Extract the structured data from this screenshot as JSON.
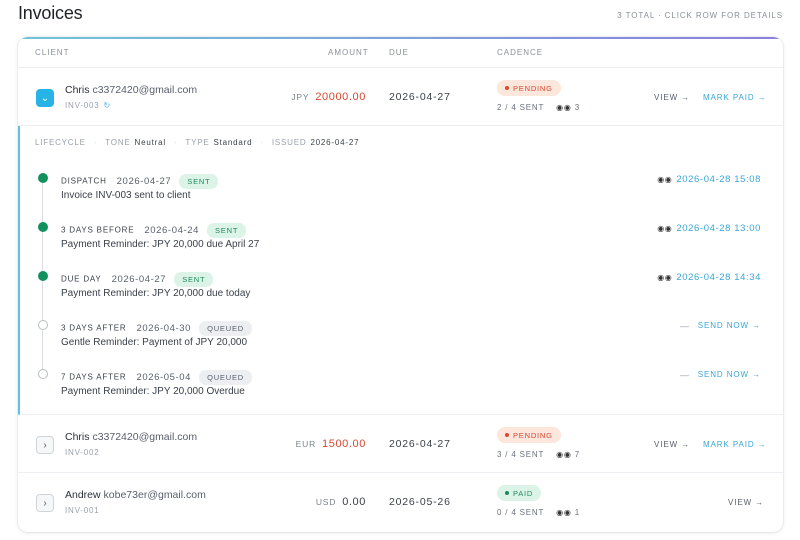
{
  "header": {
    "title": "Invoices",
    "summary": "3 TOTAL · CLICK ROW FOR DETAILS"
  },
  "columns": {
    "client": "CLIENT",
    "amount": "AMOUNT",
    "due": "DUE",
    "cadence": "CADENCE"
  },
  "invoices": [
    {
      "name": "Chris",
      "email": "c3372420@gmail.com",
      "id": "INV-003",
      "currency": "JPY",
      "amount": "20000.00",
      "due": "2026-04-27",
      "status": "PENDING",
      "sent": "2 / 4 SENT",
      "opens": "3",
      "view": "VIEW →",
      "mark_paid": "MARK PAID →",
      "expanded": true
    },
    {
      "name": "Chris",
      "email": "c3372420@gmail.com",
      "id": "INV-002",
      "currency": "EUR",
      "amount": "1500.00",
      "due": "2026-04-27",
      "status": "PENDING",
      "sent": "3 / 4 SENT",
      "opens": "7",
      "view": "VIEW →",
      "mark_paid": "MARK PAID →",
      "expanded": false
    },
    {
      "name": "Andrew",
      "email": "kobe73er@gmail.com",
      "id": "INV-001",
      "currency": "USD",
      "amount": "0.00",
      "due": "2026-05-26",
      "status": "PAID",
      "sent": "0 / 4 SENT",
      "opens": "1",
      "view": "VIEW →",
      "expanded": false
    }
  ],
  "lifecycle": {
    "label": "LIFECYCLE",
    "tone_label": "TONE",
    "tone": "Neutral",
    "type_label": "TYPE",
    "type": "Standard",
    "issued_label": "ISSUED",
    "issued": "2026-04-27",
    "steps": [
      {
        "label": "DISPATCH",
        "date": "2026-04-27",
        "status": "SENT",
        "desc": "Invoice INV-003 sent to client",
        "sent_at": "2026-04-28 15:08",
        "done": true
      },
      {
        "label": "3 DAYS BEFORE",
        "date": "2026-04-24",
        "status": "SENT",
        "desc": "Payment Reminder: JPY 20,000 due April 27",
        "sent_at": "2026-04-28 13:00",
        "done": true
      },
      {
        "label": "DUE DAY",
        "date": "2026-04-27",
        "status": "SENT",
        "desc": "Payment Reminder: JPY 20,000 due today",
        "sent_at": "2026-04-28 14:34",
        "done": true
      },
      {
        "label": "3 DAYS AFTER",
        "date": "2026-04-30",
        "status": "QUEUED",
        "desc": "Gentle Reminder: Payment of JPY 20,000",
        "dash": "—",
        "send_now": "SEND NOW →",
        "done": false
      },
      {
        "label": "7 DAYS AFTER",
        "date": "2026-05-04",
        "status": "QUEUED",
        "desc": "Payment Reminder: JPY 20,000 Overdue",
        "dash": "—",
        "send_now": "SEND NOW →",
        "done": false
      }
    ]
  },
  "colors": {
    "accent": "#27b3e6",
    "pending": "#d9472f",
    "paid": "#1d8a5b",
    "sent_node": "#12905e"
  }
}
